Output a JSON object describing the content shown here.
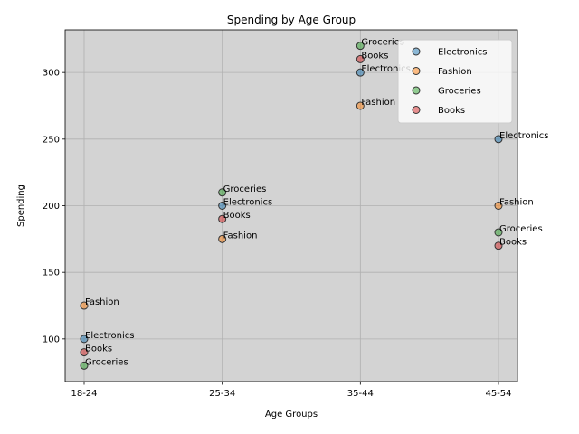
{
  "chart_data": {
    "type": "scatter",
    "title": "Spending by Age Group",
    "xlabel": "Age Groups",
    "ylabel": "Spending",
    "categories": [
      "18-24",
      "25-34",
      "35-44",
      "45-54"
    ],
    "ylim": [
      68,
      332
    ],
    "yticks": [
      100,
      150,
      200,
      250,
      300
    ],
    "grid": true,
    "legend_position": "top-right",
    "background": "#d3d3d3",
    "series": [
      {
        "name": "Electronics",
        "color": "#1f77b4",
        "values": [
          100,
          200,
          300,
          250
        ]
      },
      {
        "name": "Fashion",
        "color": "#ff7f0e",
        "values": [
          125,
          175,
          275,
          200
        ]
      },
      {
        "name": "Groceries",
        "color": "#2ca02c",
        "values": [
          80,
          210,
          320,
          180
        ]
      },
      {
        "name": "Books",
        "color": "#d62728",
        "values": [
          90,
          190,
          310,
          170
        ]
      }
    ]
  }
}
